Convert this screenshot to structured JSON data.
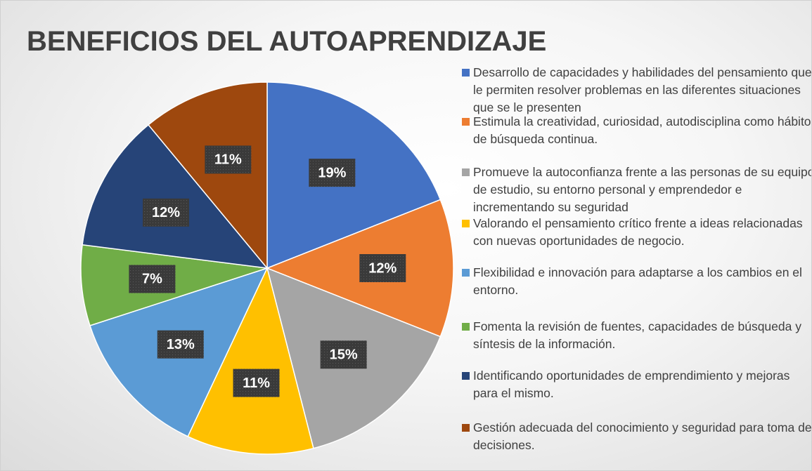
{
  "chart_data": {
    "type": "pie",
    "title": "BENEFICIOS DEL AUTOAPRENDIZAJE",
    "categories": [
      "Desarrollo de capacidades y habilidades del pensamiento que le permiten resolver problemas en las diferentes situaciones que se le presenten",
      "Estimula la creatividad, curiosidad, autodisciplina como hábito de búsqueda continua.",
      "Promueve la autoconfianza frente a las personas de su equipo de estudio, su entorno personal y emprendedor e incrementando su seguridad",
      "Valorando el pensamiento crítico frente a ideas relacionadas con nuevas oportunidades de negocio.",
      "Flexibilidad e innovación para adaptarse a los cambios en el entorno.",
      "Fomenta la revisión de fuentes, capacidades de búsqueda y síntesis de la información.",
      "Identificando oportunidades de emprendimiento y mejoras para el mismo.",
      "Gestión adecuada del conocimiento y seguridad para toma de decisiones."
    ],
    "values": [
      19,
      12,
      15,
      11,
      13,
      7,
      12,
      11
    ],
    "value_labels": [
      "19%",
      "12%",
      "15%",
      "11%",
      "13%",
      "7%",
      "12%",
      "11%"
    ],
    "colors": [
      "#4472c4",
      "#ed7d31",
      "#a5a5a5",
      "#ffc000",
      "#5b9bd5",
      "#70ad47",
      "#264478",
      "#9e480e"
    ],
    "legend": "right"
  }
}
